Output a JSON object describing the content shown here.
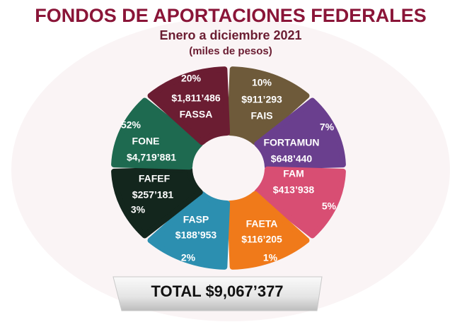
{
  "header": {
    "title": "FONDOS DE APORTACIONES FEDERALES",
    "subtitle": "Enero a diciembre 2021",
    "unit": "(miles de pesos)"
  },
  "segments": [
    {
      "name": "FAIS",
      "amount": "$911’293",
      "percent": "10%"
    },
    {
      "name": "FORTAMUN",
      "amount": "$648’440",
      "percent": "7%"
    },
    {
      "name": "FAM",
      "amount": "$413’938",
      "percent": "5%"
    },
    {
      "name": "FAETA",
      "amount": "$116’205",
      "percent": "1%"
    },
    {
      "name": "FASP",
      "amount": "$188’953",
      "percent": "2%"
    },
    {
      "name": "FAFEF",
      "amount": "$257’181",
      "percent": "3%"
    },
    {
      "name": "FONE",
      "amount": "$4,719’881",
      "percent": "52%"
    },
    {
      "name": "FASSA",
      "amount": "$1,811’486",
      "percent": "20%"
    }
  ],
  "total": "TOTAL $9,067’377"
}
